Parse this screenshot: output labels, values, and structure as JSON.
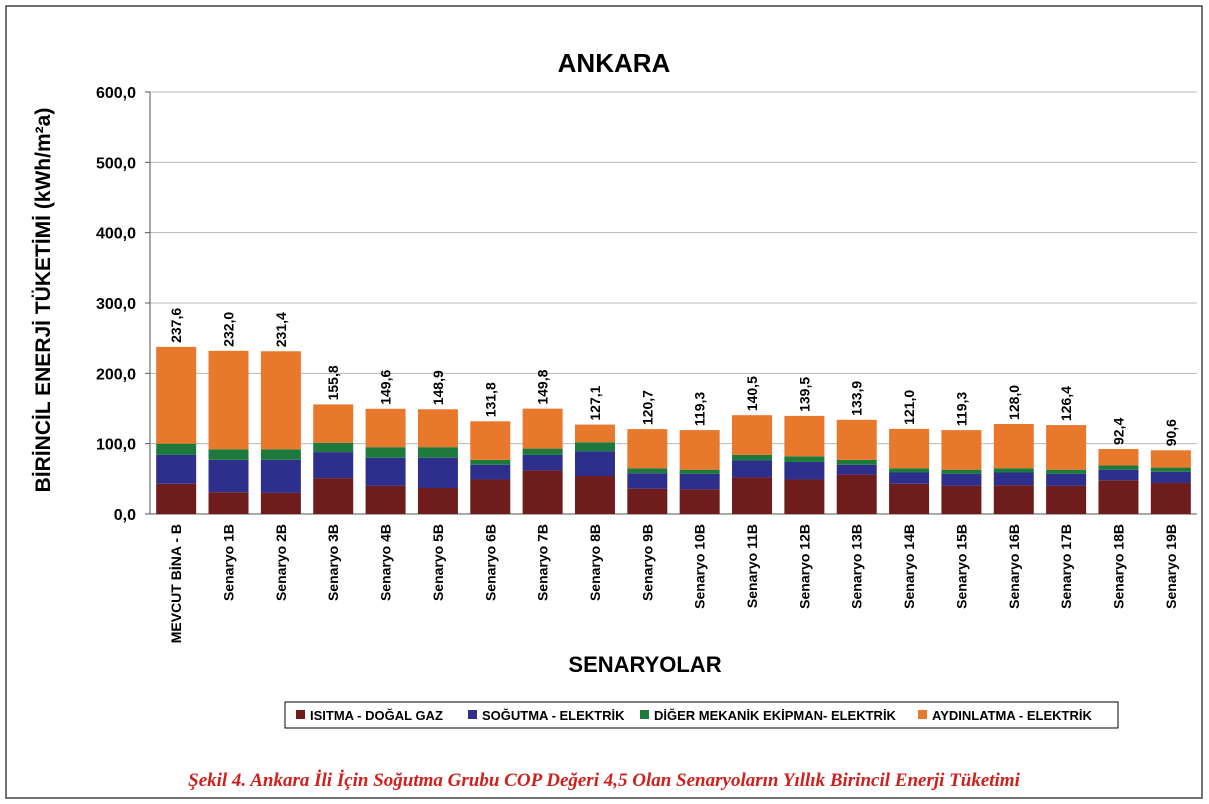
{
  "chart_data": {
    "type": "stacked_bar",
    "title": "ANKARA",
    "x_label": "SENARYOLAR",
    "y_label": "BİRİNCİL ENERJİ TÜKETİMİ (kWh/m²a)",
    "caption": "Şekil 4. Ankara İli İçin Soğutma Grubu COP Değeri 4,5 Olan Senaryoların Yıllık Birincil Enerji Tüketimi",
    "categories": [
      "MEVCUT BİNA - B",
      "Senaryo 1B",
      "Senaryo 2B",
      "Senaryo 3B",
      "Senaryo 4B",
      "Senaryo 5B",
      "Senaryo 6B",
      "Senaryo 7B",
      "Senaryo 8B",
      "Senaryo 9B",
      "Senaryo 10B",
      "Senaryo 11B",
      "Senaryo 12B",
      "Senaryo 13B",
      "Senaryo 14B",
      "Senaryo 15B",
      "Senaryo 16B",
      "Senaryo 17B",
      "Senaryo 18B",
      "Senaryo 19B"
    ],
    "series": [
      {
        "name": "ISITMA - DOĞAL GAZ",
        "color": "#6e1c1c",
        "values": [
          43,
          31,
          30,
          51,
          40,
          37,
          49,
          62,
          54,
          36,
          35,
          52,
          49,
          56,
          43,
          40,
          41,
          40,
          48,
          44
        ]
      },
      {
        "name": "SOĞUTMA - ELEKTRİK",
        "color": "#2e2e8c",
        "values": [
          41,
          46,
          47,
          37,
          40,
          43,
          21,
          22,
          35,
          22,
          22,
          24,
          25,
          14,
          16,
          17,
          18,
          17,
          15,
          16
        ]
      },
      {
        "name": "DİĞER MEKANİK EKİPMAN- ELEKTRİK",
        "color": "#1d7a3c",
        "values": [
          16,
          15,
          15,
          13,
          15,
          15,
          7,
          9,
          13,
          7,
          6,
          8,
          8,
          7,
          6,
          6,
          6,
          6,
          6,
          6
        ]
      },
      {
        "name": "AYDINLATMA - ELEKTRİK",
        "color": "#e8782c",
        "values": [
          137.6,
          140,
          139.4,
          54.8,
          54.6,
          53.9,
          54.8,
          56.8,
          25.1,
          55.7,
          56.3,
          56.5,
          57.5,
          56.9,
          56,
          56.3,
          63,
          63.4,
          23.4,
          24.6
        ]
      }
    ],
    "totals": [
      237.6,
      232.0,
      231.4,
      155.8,
      149.6,
      148.9,
      131.8,
      149.8,
      127.1,
      120.7,
      119.3,
      140.5,
      139.5,
      133.9,
      121.0,
      119.3,
      128.0,
      126.4,
      92.4,
      90.6
    ],
    "total_labels": [
      "237,6",
      "232,0",
      "231,4",
      "155,8",
      "149,6",
      "148,9",
      "131,8",
      "149,8",
      "127,1",
      "120,7",
      "119,3",
      "140,5",
      "139,5",
      "133,9",
      "121,0",
      "119,3",
      "128,0",
      "126,4",
      "92,4",
      "90,6"
    ],
    "ylim": [
      0,
      600
    ],
    "yticks": [
      {
        "value": 0,
        "label": "0,0"
      },
      {
        "value": 100,
        "label": "100,0"
      },
      {
        "value": 200,
        "label": "200,0"
      },
      {
        "value": 300,
        "label": "300,0"
      },
      {
        "value": 400,
        "label": "400,0"
      },
      {
        "value": 500,
        "label": "500,0"
      },
      {
        "value": 600,
        "label": "600,0"
      }
    ],
    "grid": true
  }
}
